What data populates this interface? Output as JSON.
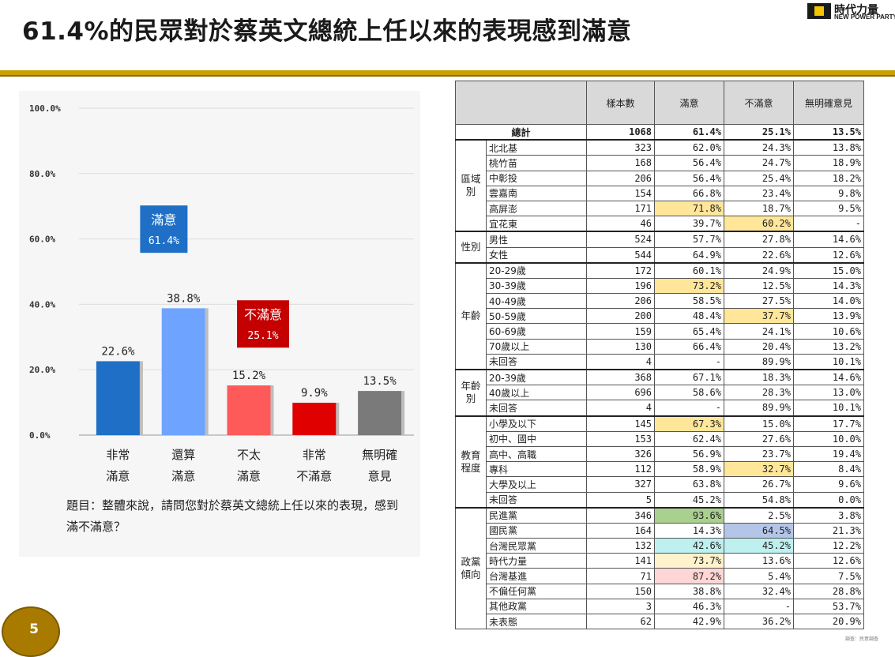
{
  "header": {
    "title": "61.4%的民眾對於蔡英文總統上任以來的表現感到滿意",
    "logo_name": "時代力量",
    "logo_sub": "NEW POWER PARTY"
  },
  "chart_data": {
    "type": "bar",
    "categories": [
      "非常\n滿意",
      "還算\n滿意",
      "不太\n滿意",
      "非常\n不滿意",
      "無明確\n意見"
    ],
    "values": [
      22.6,
      38.8,
      15.2,
      9.9,
      13.5
    ],
    "value_labels": [
      "22.6%",
      "38.8%",
      "15.2%",
      "9.9%",
      "13.5%"
    ],
    "bar_colors": [
      "#1f6fc6",
      "#6ea4ff",
      "#ff5a5a",
      "#e00000",
      "#7a7a7a"
    ],
    "yticks": [
      "0.0%",
      "20.0%",
      "40.0%",
      "60.0%",
      "80.0%",
      "100.0%"
    ],
    "ylim": [
      0,
      100
    ],
    "grid": true,
    "annotations": [
      {
        "label": "滿意",
        "value": "61.4%",
        "color": "#1f6fc6"
      },
      {
        "label": "不滿意",
        "value": "25.1%",
        "color": "#c40000"
      }
    ]
  },
  "question": "題目：整體來說，請問您對於蔡英文總統上任以來的表現，感到滿不滿意？",
  "page_number": "5",
  "table": {
    "headers": [
      "樣本數",
      "滿意",
      "不滿意",
      "無明確意見"
    ],
    "total": {
      "label": "總計",
      "values": [
        "1068",
        "61.4%",
        "25.1%",
        "13.5%"
      ]
    },
    "groups": [
      {
        "name": "區域別",
        "rows": [
          {
            "label": "北北基",
            "values": [
              "323",
              "62.0%",
              "24.3%",
              "13.8%"
            ],
            "hl": [
              "",
              "",
              "",
              ""
            ]
          },
          {
            "label": "桃竹苗",
            "values": [
              "168",
              "56.4%",
              "24.7%",
              "18.9%"
            ],
            "hl": [
              "",
              "",
              "",
              ""
            ]
          },
          {
            "label": "中彰投",
            "values": [
              "206",
              "56.4%",
              "25.4%",
              "18.2%"
            ],
            "hl": [
              "",
              "",
              "",
              ""
            ]
          },
          {
            "label": "雲嘉南",
            "values": [
              "154",
              "66.8%",
              "23.4%",
              "9.8%"
            ],
            "hl": [
              "",
              "",
              "",
              ""
            ]
          },
          {
            "label": "高屏澎",
            "values": [
              "171",
              "71.8%",
              "18.7%",
              "9.5%"
            ],
            "hl": [
              "",
              "#ffe699",
              "",
              ""
            ]
          },
          {
            "label": "宜花東",
            "values": [
              "46",
              "39.7%",
              "60.2%",
              "-"
            ],
            "hl": [
              "",
              "",
              "#ffe699",
              ""
            ]
          }
        ]
      },
      {
        "name": "性別",
        "rows": [
          {
            "label": "男性",
            "values": [
              "524",
              "57.7%",
              "27.8%",
              "14.6%"
            ],
            "hl": [
              "",
              "",
              "",
              ""
            ]
          },
          {
            "label": "女性",
            "values": [
              "544",
              "64.9%",
              "22.6%",
              "12.6%"
            ],
            "hl": [
              "",
              "",
              "",
              ""
            ]
          }
        ]
      },
      {
        "name": "年齡",
        "rows": [
          {
            "label": "20-29歲",
            "values": [
              "172",
              "60.1%",
              "24.9%",
              "15.0%"
            ],
            "hl": [
              "",
              "",
              "",
              ""
            ]
          },
          {
            "label": "30-39歲",
            "values": [
              "196",
              "73.2%",
              "12.5%",
              "14.3%"
            ],
            "hl": [
              "",
              "#ffe699",
              "",
              ""
            ]
          },
          {
            "label": "40-49歲",
            "values": [
              "206",
              "58.5%",
              "27.5%",
              "14.0%"
            ],
            "hl": [
              "",
              "",
              "",
              ""
            ]
          },
          {
            "label": "50-59歲",
            "values": [
              "200",
              "48.4%",
              "37.7%",
              "13.9%"
            ],
            "hl": [
              "",
              "",
              "#ffe699",
              ""
            ]
          },
          {
            "label": "60-69歲",
            "values": [
              "159",
              "65.4%",
              "24.1%",
              "10.6%"
            ],
            "hl": [
              "",
              "",
              "",
              ""
            ]
          },
          {
            "label": "70歲以上",
            "values": [
              "130",
              "66.4%",
              "20.4%",
              "13.2%"
            ],
            "hl": [
              "",
              "",
              "",
              ""
            ]
          },
          {
            "label": "未回答",
            "values": [
              "4",
              "-",
              "89.9%",
              "10.1%"
            ],
            "hl": [
              "",
              "",
              "",
              ""
            ]
          }
        ]
      },
      {
        "name": "年齡別",
        "rows": [
          {
            "label": "20-39歲",
            "values": [
              "368",
              "67.1%",
              "18.3%",
              "14.6%"
            ],
            "hl": [
              "",
              "",
              "",
              ""
            ]
          },
          {
            "label": "40歲以上",
            "values": [
              "696",
              "58.6%",
              "28.3%",
              "13.0%"
            ],
            "hl": [
              "",
              "",
              "",
              ""
            ]
          },
          {
            "label": "未回答",
            "values": [
              "4",
              "-",
              "89.9%",
              "10.1%"
            ],
            "hl": [
              "",
              "",
              "",
              ""
            ]
          }
        ]
      },
      {
        "name": "教育程度",
        "rows": [
          {
            "label": "小學及以下",
            "values": [
              "145",
              "67.3%",
              "15.0%",
              "17.7%"
            ],
            "hl": [
              "",
              "#ffe699",
              "",
              ""
            ]
          },
          {
            "label": "初中、國中",
            "values": [
              "153",
              "62.4%",
              "27.6%",
              "10.0%"
            ],
            "hl": [
              "",
              "",
              "",
              ""
            ]
          },
          {
            "label": "高中、高職",
            "values": [
              "326",
              "56.9%",
              "23.7%",
              "19.4%"
            ],
            "hl": [
              "",
              "",
              "",
              ""
            ]
          },
          {
            "label": "專科",
            "values": [
              "112",
              "58.9%",
              "32.7%",
              "8.4%"
            ],
            "hl": [
              "",
              "",
              "#ffe699",
              ""
            ]
          },
          {
            "label": "大學及以上",
            "values": [
              "327",
              "63.8%",
              "26.7%",
              "9.6%"
            ],
            "hl": [
              "",
              "",
              "",
              ""
            ]
          },
          {
            "label": "未回答",
            "values": [
              "5",
              "45.2%",
              "54.8%",
              "0.0%"
            ],
            "hl": [
              "",
              "",
              "",
              ""
            ]
          }
        ]
      },
      {
        "name": "政黨傾向",
        "rows": [
          {
            "label": "民進黨",
            "values": [
              "346",
              "93.6%",
              "2.5%",
              "3.8%"
            ],
            "hl": [
              "",
              "#a9d08e",
              "",
              ""
            ]
          },
          {
            "label": "國民黨",
            "values": [
              "164",
              "14.3%",
              "64.5%",
              "21.3%"
            ],
            "hl": [
              "",
              "",
              "#b4c6e7",
              ""
            ]
          },
          {
            "label": "台灣民眾黨",
            "values": [
              "132",
              "42.6%",
              "45.2%",
              "12.2%"
            ],
            "hl": [
              "",
              "#bdf0ef",
              "#bdf0ef",
              ""
            ]
          },
          {
            "label": "時代力量",
            "values": [
              "141",
              "73.7%",
              "13.6%",
              "12.6%"
            ],
            "hl": [
              "",
              "#fff2cc",
              "",
              ""
            ]
          },
          {
            "label": "台灣基進",
            "values": [
              "71",
              "87.2%",
              "5.4%",
              "7.5%"
            ],
            "hl": [
              "",
              "#ffd6d6",
              "",
              ""
            ]
          },
          {
            "label": "不偏任何黨",
            "values": [
              "150",
              "38.8%",
              "32.4%",
              "28.8%"
            ],
            "hl": [
              "",
              "",
              "",
              ""
            ]
          },
          {
            "label": "其他政黨",
            "values": [
              "3",
              "46.3%",
              "-",
              "53.7%"
            ],
            "hl": [
              "",
              "",
              "",
              ""
            ]
          },
          {
            "label": "未表態",
            "values": [
              "62",
              "42.9%",
              "36.2%",
              "20.9%"
            ],
            "hl": [
              "",
              "",
              "",
              ""
            ]
          }
        ]
      }
    ]
  },
  "source_note": "調查：民意調查"
}
